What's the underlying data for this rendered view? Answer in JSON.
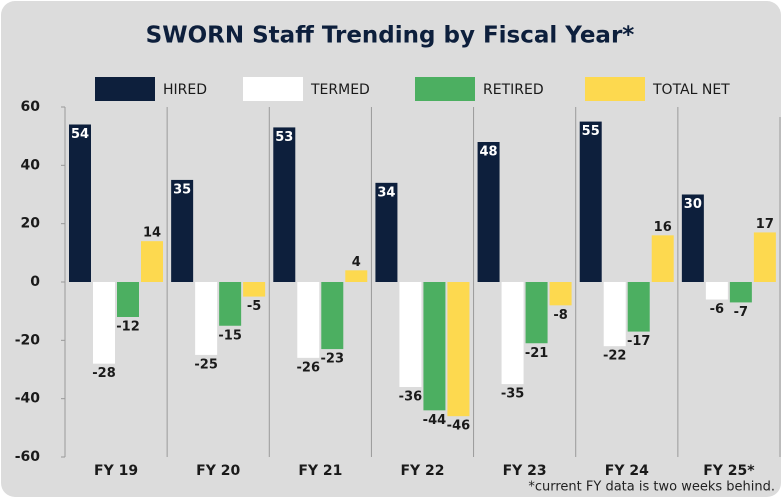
{
  "chart_data": {
    "type": "bar",
    "title": "SWORN Staff Trending by Fiscal Year*",
    "footnote": "*current FY data is two weeks behind.",
    "categories": [
      "FY 19",
      "FY 20",
      "FY 21",
      "FY 22",
      "FY 23",
      "FY 24",
      "FY 25*"
    ],
    "series": [
      {
        "name": "HIRED",
        "color": "#0d1f3c",
        "values": [
          54,
          35,
          53,
          34,
          48,
          55,
          30
        ]
      },
      {
        "name": "TERMED",
        "color": "#ffffff",
        "values": [
          -28,
          -25,
          -26,
          -36,
          -35,
          -22,
          -6
        ]
      },
      {
        "name": "RETIRED",
        "color": "#4caf61",
        "values": [
          -12,
          -15,
          -23,
          -44,
          -21,
          -17,
          -7
        ]
      },
      {
        "name": "TOTAL NET",
        "color": "#fdd94f",
        "values": [
          14,
          -5,
          4,
          -46,
          -8,
          16,
          17
        ]
      }
    ],
    "ylim": [
      -60,
      60
    ],
    "yticks": [
      -60,
      -40,
      -20,
      0,
      20,
      40,
      60
    ],
    "grid": false
  }
}
